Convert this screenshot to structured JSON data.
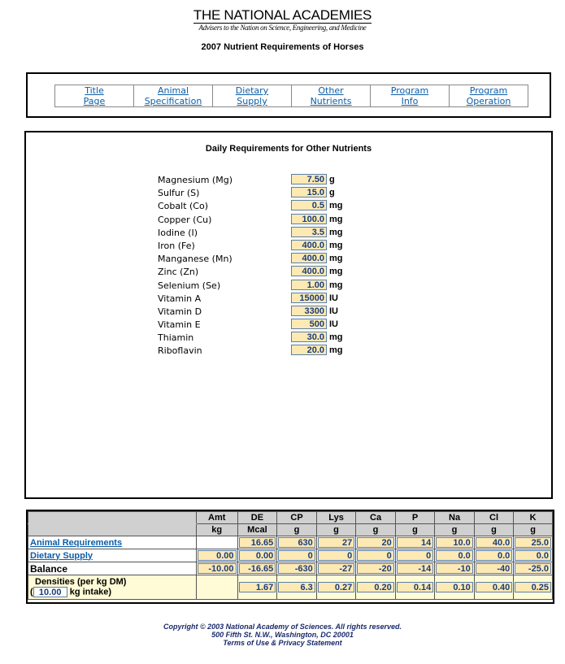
{
  "logo": {
    "title": "THE NATIONAL ACADEMIES",
    "subtitle": "Advisers to the Nation on Science, Engineering, and Medicine"
  },
  "app_title": "2007 Nutrient Requirements of Horses",
  "nav": [
    {
      "line1": "Title",
      "line2": "Page"
    },
    {
      "line1": "Animal",
      "line2": "Specification"
    },
    {
      "line1": "Dietary",
      "line2": "Supply"
    },
    {
      "line1": "Other",
      "line2": "Nutrients"
    },
    {
      "line1": "Program",
      "line2": "Info"
    },
    {
      "line1": "Program",
      "line2": "Operation"
    }
  ],
  "section_title": "Daily Requirements for Other Nutrients",
  "nutrients": [
    {
      "label": "Magnesium (Mg)",
      "value": "7.50",
      "unit": "g"
    },
    {
      "label": "Sulfur (S)",
      "value": "15.0",
      "unit": "g"
    },
    {
      "label": "Cobalt (Co)",
      "value": "0.5",
      "unit": "mg"
    },
    {
      "label": "Copper (Cu)",
      "value": "100.0",
      "unit": "mg"
    },
    {
      "label": "Iodine (I)",
      "value": "3.5",
      "unit": "mg"
    },
    {
      "label": "Iron (Fe)",
      "value": "400.0",
      "unit": "mg"
    },
    {
      "label": "Manganese (Mn)",
      "value": "400.0",
      "unit": "mg"
    },
    {
      "label": "Zinc (Zn)",
      "value": "400.0",
      "unit": "mg"
    },
    {
      "label": "Selenium (Se)",
      "value": "1.00",
      "unit": "mg"
    },
    {
      "label": "Vitamin A",
      "value": "15000",
      "unit": "IU"
    },
    {
      "label": "Vitamin D",
      "value": "3300",
      "unit": "IU"
    },
    {
      "label": "Vitamin E",
      "value": "500",
      "unit": "IU"
    },
    {
      "label": "Thiamin",
      "value": "30.0",
      "unit": "mg"
    },
    {
      "label": "Riboflavin",
      "value": "20.0",
      "unit": "mg"
    }
  ],
  "summary": {
    "columns": [
      {
        "name": "Amt",
        "unit": "kg"
      },
      {
        "name": "DE",
        "unit": "Mcal"
      },
      {
        "name": "CP",
        "unit": "g"
      },
      {
        "name": "Lys",
        "unit": "g"
      },
      {
        "name": "Ca",
        "unit": "g"
      },
      {
        "name": "P",
        "unit": "g"
      },
      {
        "name": "Na",
        "unit": "g"
      },
      {
        "name": "Cl",
        "unit": "g"
      },
      {
        "name": "K",
        "unit": "g"
      }
    ],
    "rows": [
      {
        "label": "Animal Requirements",
        "values": [
          "",
          "16.65",
          "630",
          "27",
          "20",
          "14",
          "10.0",
          "40.0",
          "25.0"
        ]
      },
      {
        "label": "Dietary Supply",
        "values": [
          "0.00",
          "0.00",
          "0",
          "0",
          "0",
          "0",
          "0.0",
          "0.0",
          "0.0"
        ]
      },
      {
        "label": "Balance",
        "values": [
          "-10.00",
          "-16.65",
          "-630",
          "-27",
          "-20",
          "-14",
          "-10",
          "-40",
          "-25.0"
        ]
      }
    ],
    "densities": {
      "label": "Densities (per kg DM)",
      "paren": "(",
      "intake_value": "10.00",
      "intake_label": "kg intake)",
      "values": [
        "",
        "1.67",
        "6.3",
        "0.27",
        "0.20",
        "0.14",
        "0.10",
        "0.40",
        "0.25"
      ]
    }
  },
  "footer": {
    "line1": "Copyright © 2003 National Academy of Sciences. All rights reserved.",
    "line2": "500 Fifth St. N.W., Washington, DC  20001",
    "line3": "Terms of Use & Privacy Statement"
  }
}
